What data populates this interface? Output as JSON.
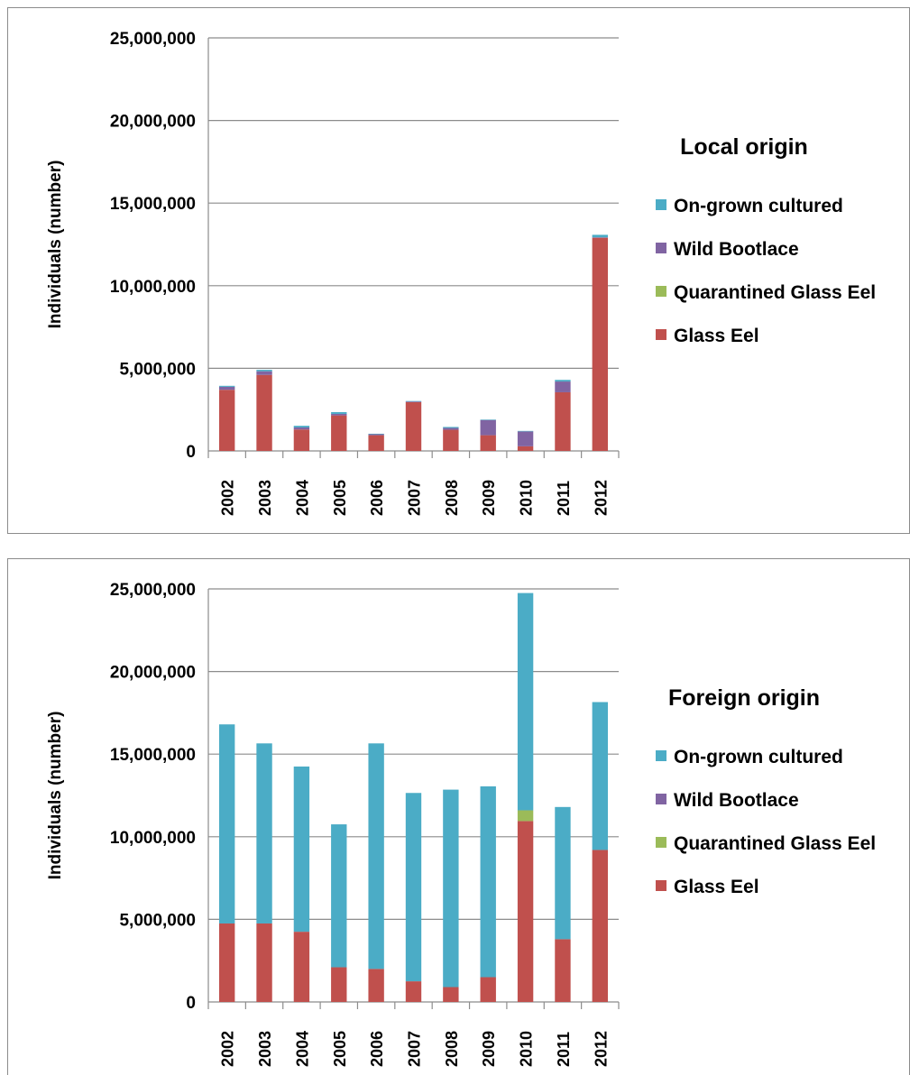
{
  "colors": {
    "Glass Eel": "#c0504d",
    "Quarantined Glass Eel": "#9bbb59",
    "Wild Bootlace": "#8064a2",
    "On-grown cultured": "#4bacc6",
    "gridline": "#8c8c8c",
    "axis": "#8c8c8c"
  },
  "chart_data": [
    {
      "type": "bar",
      "stacked": true,
      "title": "Local origin",
      "xlabel": "",
      "ylabel": "Individuals (number)",
      "ylim": [
        0,
        25000000
      ],
      "yticks": [
        0,
        5000000,
        10000000,
        15000000,
        20000000,
        25000000
      ],
      "ytick_labels": [
        "0",
        "5,000,000",
        "10,000,000",
        "15,000,000",
        "20,000,000",
        "25,000,000"
      ],
      "grid": true,
      "legend_position": "right",
      "legend_order": [
        "On-grown cultured",
        "Wild Bootlace",
        "Quarantined Glass Eel",
        "Glass Eel"
      ],
      "categories": [
        "2002",
        "2003",
        "2004",
        "2005",
        "2006",
        "2007",
        "2008",
        "2009",
        "2010",
        "2011",
        "2012"
      ],
      "series": [
        {
          "name": "Glass Eel",
          "values": [
            3700000,
            4600000,
            1300000,
            2150000,
            950000,
            2950000,
            1280000,
            950000,
            280000,
            3550000,
            12900000
          ]
        },
        {
          "name": "Quarantined Glass Eel",
          "values": [
            0,
            0,
            0,
            0,
            0,
            0,
            0,
            0,
            0,
            0,
            0
          ]
        },
        {
          "name": "Wild Bootlace",
          "values": [
            180000,
            220000,
            120000,
            90000,
            60000,
            40000,
            110000,
            920000,
            900000,
            650000,
            30000
          ]
        },
        {
          "name": "On-grown cultured",
          "values": [
            60000,
            90000,
            100000,
            110000,
            30000,
            30000,
            60000,
            30000,
            30000,
            100000,
            150000
          ]
        }
      ]
    },
    {
      "type": "bar",
      "stacked": true,
      "title": "Foreign origin",
      "xlabel": "",
      "ylabel": "Individuals (number)",
      "ylim": [
        0,
        25000000
      ],
      "yticks": [
        0,
        5000000,
        10000000,
        15000000,
        20000000,
        25000000
      ],
      "ytick_labels": [
        "0",
        "5,000,000",
        "10,000,000",
        "15,000,000",
        "20,000,000",
        "25,000,000"
      ],
      "grid": true,
      "legend_position": "right",
      "legend_order": [
        "On-grown cultured",
        "Wild Bootlace",
        "Quarantined Glass Eel",
        "Glass Eel"
      ],
      "categories": [
        "2002",
        "2003",
        "2004",
        "2005",
        "2006",
        "2007",
        "2008",
        "2009",
        "2010",
        "2011",
        "2012"
      ],
      "series": [
        {
          "name": "Glass Eel",
          "values": [
            4750000,
            4750000,
            4250000,
            2100000,
            2000000,
            1250000,
            900000,
            1500000,
            10950000,
            3800000,
            9200000
          ]
        },
        {
          "name": "Quarantined Glass Eel",
          "values": [
            0,
            0,
            0,
            0,
            0,
            0,
            0,
            0,
            650000,
            0,
            0
          ]
        },
        {
          "name": "Wild Bootlace",
          "values": [
            0,
            0,
            0,
            0,
            0,
            0,
            0,
            0,
            0,
            0,
            0
          ]
        },
        {
          "name": "On-grown cultured",
          "values": [
            12050000,
            10900000,
            10000000,
            8650000,
            13650000,
            11400000,
            11950000,
            11550000,
            13150000,
            8000000,
            8950000
          ]
        }
      ]
    }
  ]
}
